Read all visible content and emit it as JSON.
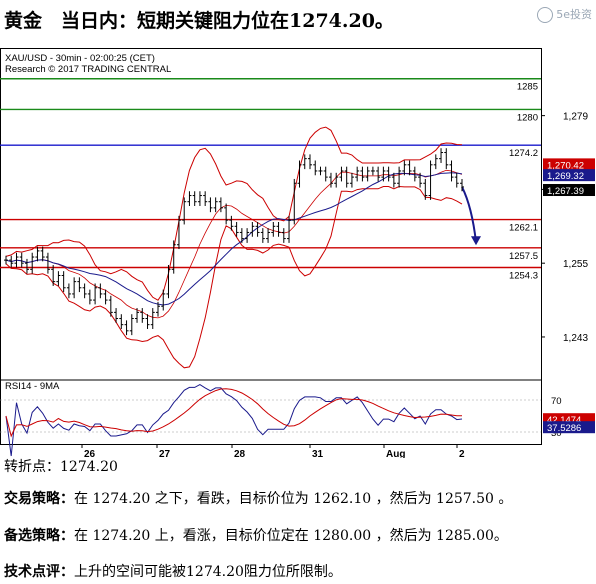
{
  "header": {
    "title": "黄金　当日内：短期关键阻力位在1274.20。",
    "watermark": "5e投资"
  },
  "chart_data": {
    "type": "line",
    "symbol_line": "XAU/USD - 30min - 02:00:25 (CET)",
    "copyright_line": "Research © 2017 TRADING CENTRAL",
    "price_axis": {
      "ylim": [
        1236,
        1290
      ],
      "ticks": [
        1279,
        1267,
        1255,
        1243
      ],
      "tick_labels": [
        "1,279",
        "1,267",
        "1,255",
        "1,243"
      ]
    },
    "x_labels": [
      "26",
      "27",
      "28",
      "31",
      "Aug",
      "2"
    ],
    "levels": [
      {
        "value": 1285,
        "label": "1285",
        "color": "#1a8a1a"
      },
      {
        "value": 1280,
        "label": "1280",
        "color": "#1a8a1a"
      },
      {
        "value": 1274.2,
        "label": "1274.2",
        "color": "#1a1acc"
      },
      {
        "value": 1262.1,
        "label": "1262.1",
        "color": "#cc0000"
      },
      {
        "value": 1257.5,
        "label": "1257.5",
        "color": "#cc0000"
      },
      {
        "value": 1254.3,
        "label": "1254.3",
        "color": "#cc0000"
      }
    ],
    "price_badges": [
      {
        "value": 1270.42,
        "label": "1,270.42",
        "color": "#cc0000"
      },
      {
        "value": 1269.32,
        "label": "1,269.32",
        "color": "#1a1a8c"
      },
      {
        "value": 1267.39,
        "label": "1,267.39",
        "color": "#000000"
      }
    ],
    "rsi": {
      "title": "RSI14 - 9MA",
      "ticks": [
        70,
        30
      ],
      "tick_labels": [
        "70",
        "30"
      ],
      "badges": [
        {
          "label": "42.1474",
          "color": "#cc0000"
        },
        {
          "label": "37.5286",
          "color": "#1a1a8c"
        }
      ]
    },
    "series": [
      {
        "name": "price",
        "close": [
          1255.5,
          1255,
          1256,
          1255,
          1254,
          1256,
          1257,
          1256,
          1254,
          1252,
          1253,
          1251,
          1250,
          1252,
          1251,
          1250,
          1249,
          1251,
          1250,
          1249,
          1247,
          1246,
          1245,
          1244,
          1246,
          1247,
          1246,
          1245,
          1247,
          1248,
          1250,
          1254,
          1258,
          1262,
          1265,
          1266,
          1265,
          1266,
          1265,
          1264,
          1265,
          1264,
          1262,
          1261,
          1260,
          1259,
          1260,
          1261,
          1260,
          1259,
          1260,
          1261,
          1260,
          1259,
          1262,
          1268,
          1271,
          1272,
          1271,
          1270,
          1270,
          1269,
          1268,
          1269,
          1270,
          1268,
          1269,
          1270,
          1269,
          1270,
          1270,
          1269,
          1270,
          1269,
          1268,
          1270,
          1271,
          1270,
          1269,
          1268,
          1266,
          1271,
          1272,
          1273,
          1271,
          1269,
          1268,
          1267.4
        ]
      }
    ]
  },
  "footer": {
    "pivot_label": "转折点：",
    "pivot_value": "1274.20",
    "strategy_label": "交易策略：",
    "strategy_text": "在 1274.20 之下，看跌，目标价位为 1262.10 ，然后为 1257.50 。",
    "alt_label": "备选策略：",
    "alt_text": "在 1274.20 上，看涨，目标价位定在 1280.00 ，然后为 1285.00。",
    "comment_label": "技术点评：",
    "comment_text": "上升的空间可能被1274.20阻力位所限制。"
  }
}
